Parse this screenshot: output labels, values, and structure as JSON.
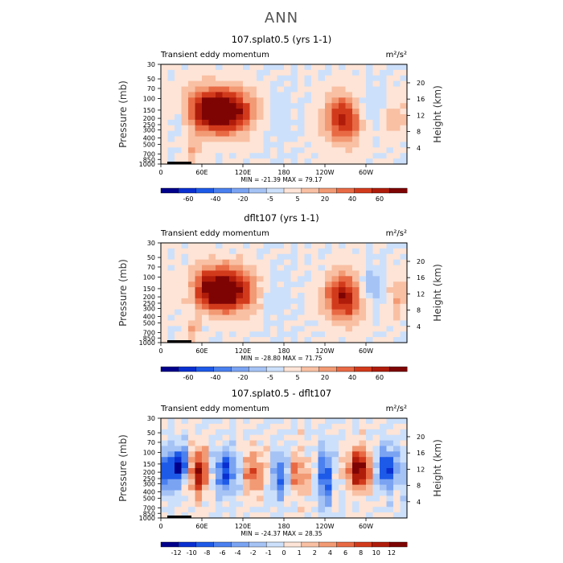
{
  "figure": {
    "title": "ANN"
  },
  "colors": {
    "ramp": [
      "#00008b",
      "#0a2fd0",
      "#1e5ae8",
      "#4a80ef",
      "#7aa3f2",
      "#a6c3f5",
      "#cde0fb",
      "#fde4d6",
      "#f9c0a4",
      "#f29a74",
      "#e86a45",
      "#d23a1c",
      "#b01c0a",
      "#7e0404"
    ],
    "outline": "#000000",
    "terrain": "#000000"
  },
  "chart_data": [
    {
      "type": "heatmap",
      "title": "107.splat0.5 (yrs 1-1)",
      "variable": "Transient eddy momentum",
      "units": "m²/s²",
      "ylabel": "Pressure (mb)",
      "ylabel_right": "Height (km)",
      "xticks": [
        "0",
        "60E",
        "120E",
        "180",
        "120W",
        "60W"
      ],
      "yticks": [
        "30",
        "50",
        "70",
        "100",
        "150",
        "200",
        "250",
        "300",
        "400",
        "500",
        "700",
        "850",
        "1000"
      ],
      "yticks_right": [
        "20",
        "16",
        "12",
        "8",
        "4"
      ],
      "stats": "MIN = -21.39   MAX =  79.17",
      "min": -21.39,
      "max": 79.17,
      "colorbar_labels": [
        "-60",
        "-40",
        "-20",
        "-5",
        "5",
        "20",
        "40",
        "60"
      ],
      "features": [
        {
          "lon": 75,
          "p": 150,
          "value": 79,
          "width_lon": 32,
          "width_p": 2.2
        },
        {
          "lon": 105,
          "p": 170,
          "value": 35,
          "width_lon": 25,
          "width_p": 2.0
        },
        {
          "lon": 268,
          "p": 200,
          "value": 65,
          "width_lon": 20,
          "width_p": 2.4
        },
        {
          "lon": 30,
          "p": 180,
          "value": -20,
          "width_lon": 16,
          "width_p": 2.0
        },
        {
          "lon": 300,
          "p": 150,
          "value": -18,
          "width_lon": 20,
          "width_p": 2.0
        },
        {
          "lon": 170,
          "p": 200,
          "value": -8,
          "width_lon": 15,
          "width_p": 2.0
        },
        {
          "lon": 340,
          "p": 200,
          "value": 18,
          "width_lon": 15,
          "width_p": 2.0
        },
        {
          "lon": 45,
          "p": 700,
          "value": 22,
          "width_lon": 8,
          "width_p": 1.4
        }
      ]
    },
    {
      "type": "heatmap",
      "title": "dflt107 (yrs 1-1)",
      "variable": "Transient eddy momentum",
      "units": "m²/s²",
      "ylabel": "Pressure (mb)",
      "ylabel_right": "Height (km)",
      "xticks": [
        "0",
        "60E",
        "120E",
        "180",
        "120W",
        "60W"
      ],
      "yticks": [
        "30",
        "50",
        "70",
        "100",
        "150",
        "200",
        "250",
        "300",
        "400",
        "500",
        "700",
        "850",
        "1000"
      ],
      "yticks_right": [
        "20",
        "16",
        "12",
        "8",
        "4"
      ],
      "stats": "MIN = -28.80   MAX =  71.75",
      "min": -28.8,
      "max": 71.75,
      "colorbar_labels": [
        "-60",
        "-40",
        "-20",
        "-5",
        "5",
        "20",
        "40",
        "60"
      ],
      "features": [
        {
          "lon": 80,
          "p": 150,
          "value": 71,
          "width_lon": 30,
          "width_p": 2.2
        },
        {
          "lon": 110,
          "p": 175,
          "value": 30,
          "width_lon": 25,
          "width_p": 2.0
        },
        {
          "lon": 270,
          "p": 200,
          "value": 62,
          "width_lon": 22,
          "width_p": 2.4
        },
        {
          "lon": 40,
          "p": 150,
          "value": -18,
          "width_lon": 12,
          "width_p": 2.0
        },
        {
          "lon": 305,
          "p": 150,
          "value": -28,
          "width_lon": 16,
          "width_p": 2.0
        },
        {
          "lon": 165,
          "p": 200,
          "value": -10,
          "width_lon": 15,
          "width_p": 2.0
        },
        {
          "lon": 345,
          "p": 200,
          "value": 20,
          "width_lon": 12,
          "width_p": 2.0
        },
        {
          "lon": 45,
          "p": 700,
          "value": 20,
          "width_lon": 8,
          "width_p": 1.4
        }
      ]
    },
    {
      "type": "heatmap",
      "title": "107.splat0.5 - dflt107",
      "variable": "Transient eddy momentum",
      "units": "m²/s²",
      "ylabel": "Pressure (mb)",
      "ylabel_right": "Height (km)",
      "xticks": [
        "0",
        "60E",
        "120E",
        "180",
        "120W",
        "60W"
      ],
      "yticks": [
        "30",
        "50",
        "70",
        "100",
        "150",
        "200",
        "250",
        "300",
        "400",
        "500",
        "700",
        "850",
        "1000"
      ],
      "yticks_right": [
        "20",
        "16",
        "12",
        "8",
        "4"
      ],
      "stats": "MIN = -24.37   MAX =  28.35",
      "min": -24.37,
      "max": 28.35,
      "colorbar_labels": [
        "-12",
        "-10",
        "-8",
        "-6",
        "-4",
        "-2",
        "-1",
        "0",
        "1",
        "2",
        "4",
        "6",
        "8",
        "10",
        "12"
      ],
      "features": [
        {
          "lon": 10,
          "p": 200,
          "value": -20,
          "width_lon": 10,
          "width_p": 2.0
        },
        {
          "lon": 55,
          "p": 200,
          "value": 25,
          "width_lon": 10,
          "width_p": 2.2
        },
        {
          "lon": 95,
          "p": 200,
          "value": -20,
          "width_lon": 12,
          "width_p": 2.0
        },
        {
          "lon": 135,
          "p": 200,
          "value": 16,
          "width_lon": 10,
          "width_p": 2.0
        },
        {
          "lon": 175,
          "p": 230,
          "value": -18,
          "width_lon": 8,
          "width_p": 2.2
        },
        {
          "lon": 200,
          "p": 220,
          "value": 14,
          "width_lon": 10,
          "width_p": 2.0
        },
        {
          "lon": 240,
          "p": 230,
          "value": -24,
          "width_lon": 6,
          "width_p": 2.6
        },
        {
          "lon": 290,
          "p": 180,
          "value": 28,
          "width_lon": 12,
          "width_p": 2.0
        },
        {
          "lon": 330,
          "p": 170,
          "value": -22,
          "width_lon": 10,
          "width_p": 2.0
        },
        {
          "lon": 30,
          "p": 150,
          "value": -24,
          "width_lon": 8,
          "width_p": 1.6
        }
      ]
    }
  ]
}
